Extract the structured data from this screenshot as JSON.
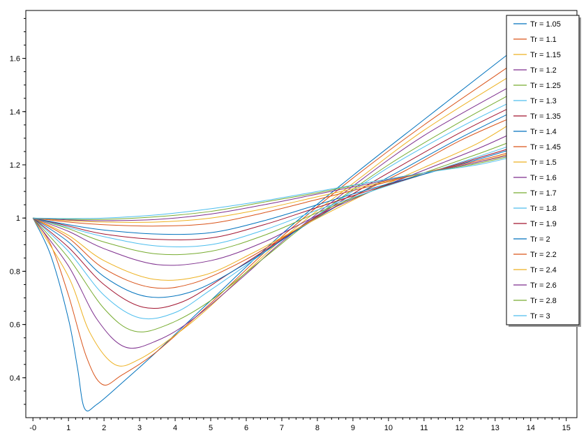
{
  "chart_data": {
    "type": "line",
    "title": "",
    "xlabel": "",
    "ylabel": "",
    "xlim": [
      -0.2,
      15.3
    ],
    "ylim": [
      0.25,
      1.78
    ],
    "x_ticks": [
      0,
      1,
      2,
      3,
      4,
      5,
      6,
      7,
      8,
      9,
      10,
      11,
      12,
      13,
      14,
      15
    ],
    "x_tick_labels": [
      "-0",
      "1",
      "2",
      "3",
      "4",
      "5",
      "6",
      "7",
      "8",
      "9",
      "10",
      "11",
      "12",
      "13",
      "14",
      "15"
    ],
    "y_ticks": [
      0.4,
      0.6,
      0.8,
      1.0,
      1.2,
      1.4,
      1.6
    ],
    "y_tick_labels": [
      "0.4",
      "0.6",
      "0.8",
      "1",
      "1.2",
      "1.4",
      "1.6"
    ],
    "grid": false,
    "legend_position": "top-right",
    "series": [
      {
        "name": "Tr = 1.05",
        "color": "#0072BD",
        "x": [
          0,
          0.5,
          1,
          1.25,
          1.45,
          1.8,
          2.5,
          3.5,
          5,
          7,
          9,
          11,
          13.5
        ],
        "values": [
          1.0,
          0.86,
          0.62,
          0.44,
          0.285,
          0.3,
          0.38,
          0.5,
          0.69,
          0.94,
          1.16,
          1.37,
          1.63
        ]
      },
      {
        "name": "Tr = 1.1",
        "color": "#D95319",
        "x": [
          0,
          0.5,
          1,
          1.5,
          1.95,
          2.5,
          3.5,
          5,
          7,
          9,
          11,
          13.5
        ],
        "values": [
          1.0,
          0.9,
          0.71,
          0.48,
          0.375,
          0.41,
          0.5,
          0.68,
          0.93,
          1.15,
          1.35,
          1.58
        ]
      },
      {
        "name": "Tr = 1.15",
        "color": "#EDB120",
        "x": [
          0,
          1,
          1.6,
          2.3,
          3,
          4,
          5,
          7,
          9,
          11,
          13.5
        ],
        "values": [
          1.0,
          0.78,
          0.57,
          0.45,
          0.47,
          0.56,
          0.67,
          0.92,
          1.13,
          1.33,
          1.54
        ]
      },
      {
        "name": "Tr = 1.2",
        "color": "#7E2F8E",
        "x": [
          0,
          1,
          1.8,
          2.6,
          3.5,
          4.5,
          6,
          7,
          9,
          11,
          13.5
        ],
        "values": [
          1.0,
          0.82,
          0.62,
          0.515,
          0.54,
          0.62,
          0.79,
          0.91,
          1.12,
          1.31,
          1.5
        ]
      },
      {
        "name": "Tr = 1.25",
        "color": "#77AC30",
        "x": [
          0,
          1,
          2,
          2.85,
          3.8,
          5,
          6.5,
          8,
          10,
          12,
          13.5
        ],
        "values": [
          1.0,
          0.85,
          0.66,
          0.575,
          0.6,
          0.69,
          0.85,
          1.01,
          1.2,
          1.36,
          1.47
        ]
      },
      {
        "name": "Tr = 1.3",
        "color": "#4DBEEE",
        "x": [
          0,
          1,
          2,
          3,
          4,
          5,
          6.5,
          8,
          10,
          12,
          13.5
        ],
        "values": [
          1.0,
          0.875,
          0.71,
          0.625,
          0.645,
          0.73,
          0.87,
          1.01,
          1.19,
          1.34,
          1.44
        ]
      },
      {
        "name": "Tr = 1.35",
        "color": "#A2142F",
        "x": [
          0,
          1,
          2,
          3.1,
          4.2,
          5.5,
          7,
          8.5,
          10,
          12,
          13.5
        ],
        "values": [
          1.0,
          0.89,
          0.75,
          0.665,
          0.685,
          0.79,
          0.92,
          1.05,
          1.17,
          1.32,
          1.42
        ]
      },
      {
        "name": "Tr = 1.4",
        "color": "#0072BD",
        "x": [
          0,
          1,
          2,
          3.2,
          4.5,
          6,
          7.5,
          9,
          10.5,
          12,
          13.5
        ],
        "values": [
          1.0,
          0.91,
          0.78,
          0.705,
          0.725,
          0.83,
          0.96,
          1.08,
          1.19,
          1.3,
          1.4
        ]
      },
      {
        "name": "Tr = 1.45",
        "color": "#D95319",
        "x": [
          0,
          1,
          2,
          3.3,
          4.5,
          6,
          7.5,
          9,
          10.5,
          12,
          13.5
        ],
        "values": [
          1.0,
          0.925,
          0.81,
          0.74,
          0.755,
          0.845,
          0.965,
          1.08,
          1.18,
          1.29,
          1.38
        ]
      },
      {
        "name": "Tr = 1.5",
        "color": "#EDB120",
        "x": [
          0,
          1,
          2,
          3.4,
          4.8,
          6.2,
          7.8,
          9.5,
          11,
          12.5,
          13.5
        ],
        "values": [
          1.0,
          0.935,
          0.84,
          0.77,
          0.785,
          0.87,
          0.985,
          1.1,
          1.19,
          1.28,
          1.36
        ]
      },
      {
        "name": "Tr = 1.6",
        "color": "#7E2F8E",
        "x": [
          0,
          1,
          2,
          3.5,
          5,
          6.5,
          8,
          9.5,
          11,
          12.5,
          13.5
        ],
        "values": [
          1.0,
          0.95,
          0.885,
          0.825,
          0.84,
          0.91,
          1.01,
          1.1,
          1.18,
          1.26,
          1.32
        ]
      },
      {
        "name": "Tr = 1.7",
        "color": "#77AC30",
        "x": [
          0,
          1,
          2,
          3.5,
          5,
          6.5,
          8,
          9.5,
          11,
          12.5,
          13.5
        ],
        "values": [
          1.0,
          0.96,
          0.91,
          0.865,
          0.875,
          0.935,
          1.02,
          1.1,
          1.17,
          1.24,
          1.29
        ]
      },
      {
        "name": "Tr = 1.8",
        "color": "#4DBEEE",
        "x": [
          0,
          1,
          2,
          3.5,
          5,
          6.5,
          8,
          9.5,
          11,
          12.5,
          13.5
        ],
        "values": [
          1.0,
          0.965,
          0.93,
          0.895,
          0.9,
          0.955,
          1.03,
          1.1,
          1.165,
          1.23,
          1.275
        ]
      },
      {
        "name": "Tr = 1.9",
        "color": "#A2142F",
        "x": [
          0,
          1,
          2,
          3.5,
          5,
          6.5,
          8,
          9.5,
          11,
          12.5,
          13.5
        ],
        "values": [
          1.0,
          0.97,
          0.94,
          0.92,
          0.925,
          0.975,
          1.04,
          1.105,
          1.165,
          1.225,
          1.265
        ]
      },
      {
        "name": "Tr = 2",
        "color": "#0072BD",
        "x": [
          0,
          1,
          2,
          3.5,
          5,
          6.5,
          8,
          9.5,
          11,
          12.5,
          13.5
        ],
        "values": [
          1.0,
          0.975,
          0.955,
          0.94,
          0.945,
          0.99,
          1.05,
          1.11,
          1.165,
          1.22,
          1.26
        ]
      },
      {
        "name": "Tr = 2.2",
        "color": "#D95319",
        "x": [
          0,
          1,
          2,
          3.5,
          5,
          6.5,
          8,
          9.5,
          11,
          12.5,
          13.5
        ],
        "values": [
          1.0,
          0.985,
          0.975,
          0.97,
          0.98,
          1.02,
          1.07,
          1.12,
          1.17,
          1.215,
          1.25
        ]
      },
      {
        "name": "Tr = 2.4",
        "color": "#EDB120",
        "x": [
          0,
          1,
          2,
          3.5,
          5,
          6.5,
          8,
          9.5,
          11,
          12.5,
          13.5
        ],
        "values": [
          1.0,
          0.99,
          0.985,
          0.985,
          1.0,
          1.035,
          1.08,
          1.125,
          1.17,
          1.21,
          1.245
        ]
      },
      {
        "name": "Tr = 2.6",
        "color": "#7E2F8E",
        "x": [
          0,
          1,
          2,
          3.5,
          5,
          6.5,
          8,
          9.5,
          11,
          12.5,
          13.5
        ],
        "values": [
          1.0,
          0.993,
          0.99,
          0.995,
          1.015,
          1.05,
          1.09,
          1.13,
          1.17,
          1.21,
          1.24
        ]
      },
      {
        "name": "Tr = 2.8",
        "color": "#77AC30",
        "x": [
          0,
          1,
          2,
          3.5,
          5,
          6.5,
          8,
          9.5,
          11,
          12.5,
          13.5
        ],
        "values": [
          1.0,
          0.996,
          0.995,
          1.005,
          1.025,
          1.06,
          1.095,
          1.135,
          1.17,
          1.205,
          1.235
        ]
      },
      {
        "name": "Tr = 3",
        "color": "#4DBEEE",
        "x": [
          0,
          1,
          2,
          3.5,
          5,
          6.5,
          8,
          9.5,
          11,
          12.5,
          13.5
        ],
        "values": [
          1.0,
          0.998,
          1.0,
          1.012,
          1.035,
          1.065,
          1.1,
          1.135,
          1.17,
          1.2,
          1.23
        ]
      }
    ]
  }
}
